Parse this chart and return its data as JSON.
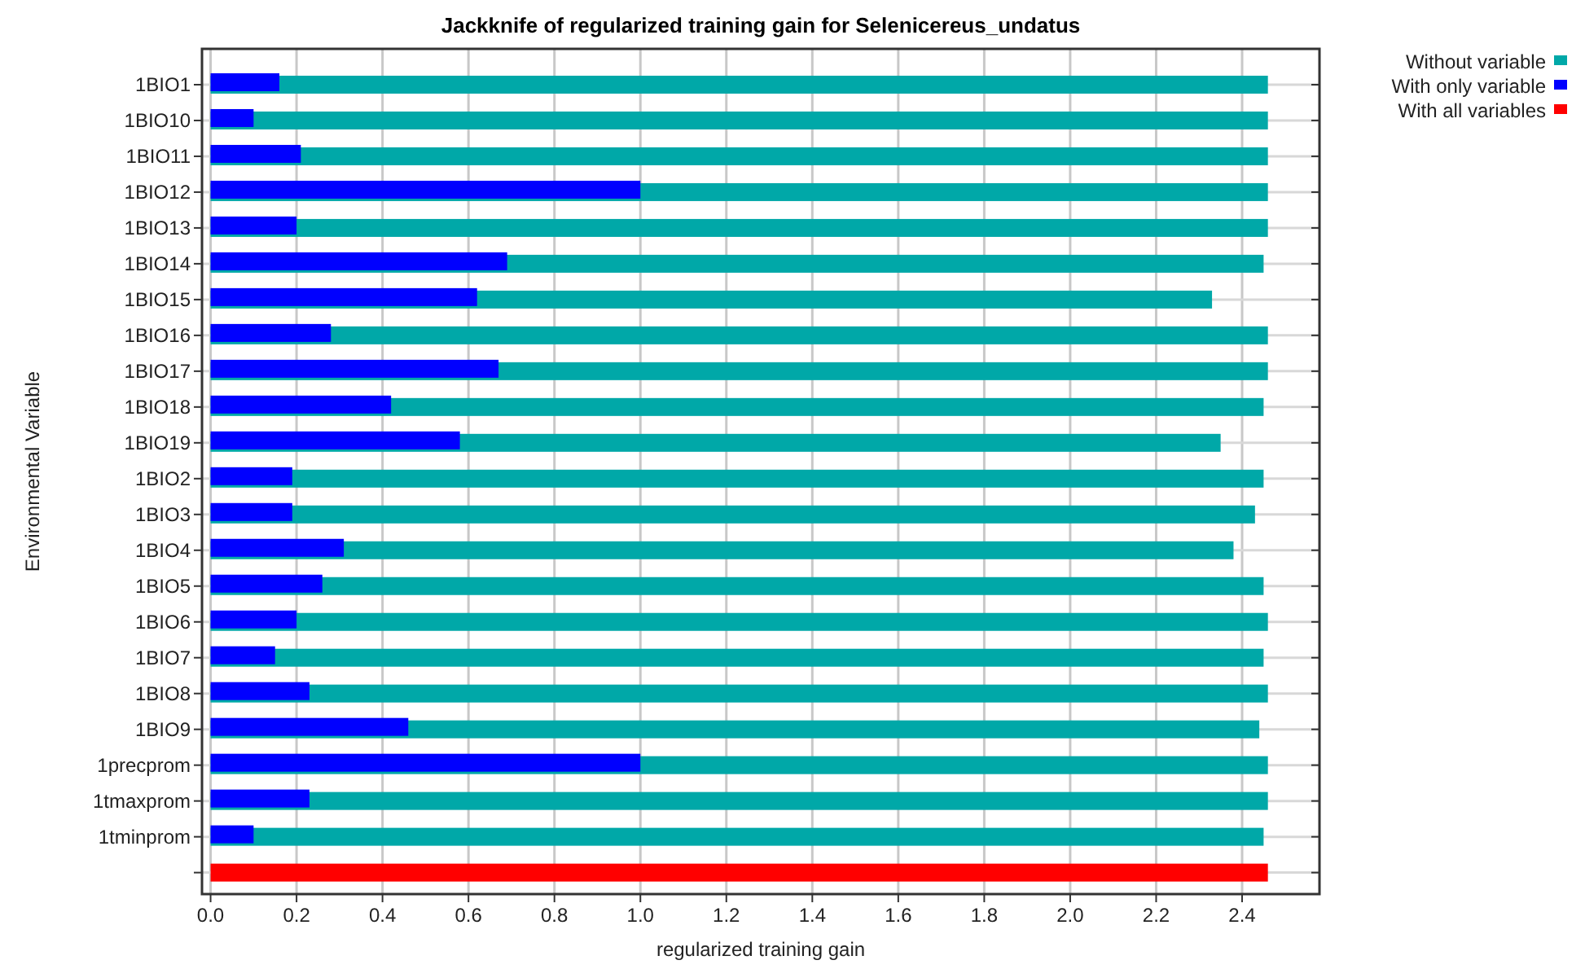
{
  "chart_data": {
    "type": "bar",
    "orientation": "horizontal",
    "title": "Jackknife of regularized training gain for Selenicereus_undatus",
    "xlabel": "regularized training gain",
    "ylabel": "Environmental Variable",
    "categories": [
      "1BIO1",
      "1BIO10",
      "1BIO11",
      "1BIO12",
      "1BIO13",
      "1BIO14",
      "1BIO15",
      "1BIO16",
      "1BIO17",
      "1BIO18",
      "1BIO19",
      "1BIO2",
      "1BIO3",
      "1BIO4",
      "1BIO5",
      "1BIO6",
      "1BIO7",
      "1BIO8",
      "1BIO9",
      "1precprom",
      "1tmaxprom",
      "1tminprom",
      null
    ],
    "series": [
      {
        "name": "Without variable",
        "color": "#00a8a8",
        "values": [
          2.46,
          2.46,
          2.46,
          2.46,
          2.46,
          2.45,
          2.33,
          2.46,
          2.46,
          2.45,
          2.35,
          2.45,
          2.43,
          2.38,
          2.45,
          2.46,
          2.45,
          2.46,
          2.44,
          2.46,
          2.46,
          2.45,
          null
        ]
      },
      {
        "name": "With only variable",
        "color": "#0000ff",
        "values": [
          0.16,
          0.1,
          0.21,
          1.0,
          0.2,
          0.69,
          0.62,
          0.28,
          0.67,
          0.42,
          0.58,
          0.19,
          0.19,
          0.31,
          0.26,
          0.2,
          0.15,
          0.23,
          0.46,
          1.0,
          0.23,
          0.1,
          null
        ]
      },
      {
        "name": "With all variables",
        "color": "#ff0000",
        "values": [
          null,
          null,
          null,
          null,
          null,
          null,
          null,
          null,
          null,
          null,
          null,
          null,
          null,
          null,
          null,
          null,
          null,
          null,
          null,
          null,
          null,
          null,
          2.46
        ]
      }
    ],
    "xlim": [
      -0.02,
      2.58
    ],
    "xticks": [
      {
        "value": 0,
        "label": "0.0"
      },
      {
        "value": 0.2,
        "label": "0.2"
      },
      {
        "value": 0.4,
        "label": "0.4"
      },
      {
        "value": 0.6,
        "label": "0.6"
      },
      {
        "value": 0.8,
        "label": "0.8"
      },
      {
        "value": 1,
        "label": "1.0"
      },
      {
        "value": 1.2,
        "label": "1.2"
      },
      {
        "value": 1.4,
        "label": "1.4"
      },
      {
        "value": 1.6,
        "label": "1.6"
      },
      {
        "value": 1.8,
        "label": "1.8"
      },
      {
        "value": 2,
        "label": "2.0"
      },
      {
        "value": 2.2,
        "label": "2.2"
      },
      {
        "value": 2.4,
        "label": "2.4"
      }
    ],
    "grid": true,
    "legend": "top right"
  }
}
